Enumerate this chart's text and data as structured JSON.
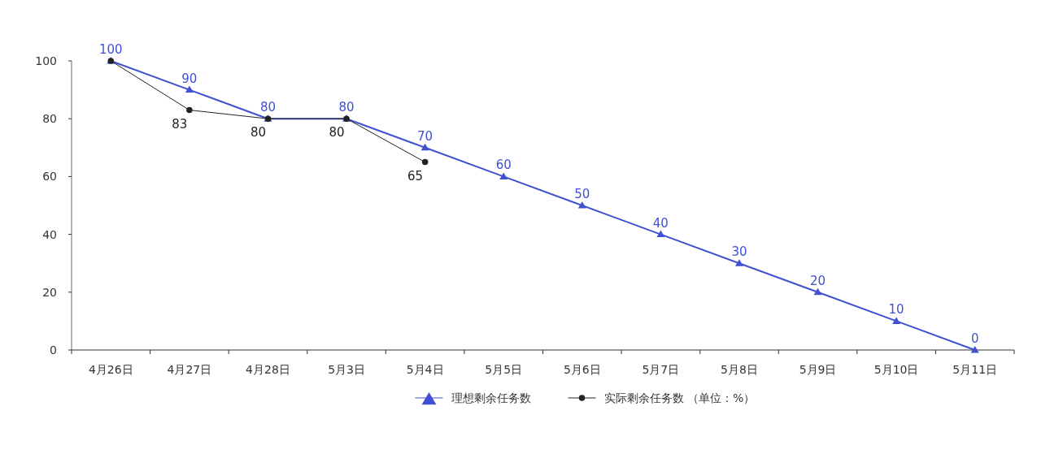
{
  "chart_data": {
    "type": "line",
    "categories": [
      "4月26日",
      "4月27日",
      "4月28日",
      "5月3日",
      "5月4日",
      "5月5日",
      "5月6日",
      "5月7日",
      "5月8日",
      "5月9日",
      "5月10日",
      "5月11日"
    ],
    "ylim": [
      0,
      100
    ],
    "yticks": [
      0,
      20,
      40,
      60,
      80,
      100
    ],
    "grid": false,
    "legend": "bottom",
    "series": [
      {
        "name": "理想剩余任务数",
        "color": "#3f51d0",
        "marker": "triangle",
        "values": [
          100,
          90,
          80,
          80,
          70,
          60,
          50,
          40,
          30,
          20,
          10,
          0
        ],
        "value_labels": [
          "100",
          "90",
          "80",
          "80",
          "70",
          "60",
          "50",
          "40",
          "30",
          "20",
          "10",
          "0"
        ]
      },
      {
        "name": "实际剩余任务数 （单位：%）",
        "color": "#222222",
        "marker": "circle",
        "values": [
          100,
          83,
          80,
          80,
          65,
          null,
          null,
          null,
          null,
          null,
          null,
          null
        ],
        "value_labels": [
          null,
          "83",
          "80",
          "80",
          "65",
          null,
          null,
          null,
          null,
          null,
          null,
          null
        ]
      }
    ]
  }
}
